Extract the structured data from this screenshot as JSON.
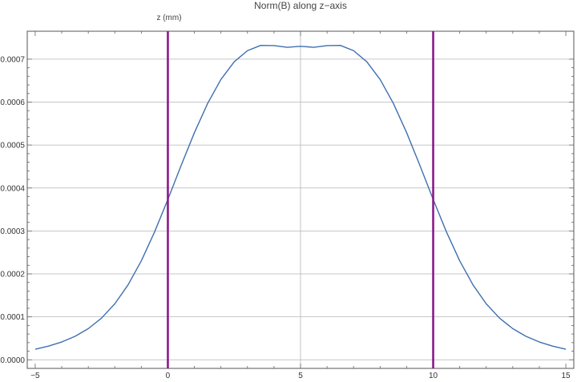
{
  "chart_data": {
    "type": "line",
    "title": "Norm(B) along z−axis",
    "xlabel": "z (mm)",
    "ylabel": "",
    "xlim": [
      -5.3,
      15.3
    ],
    "ylim": [
      -2e-05,
      0.000765
    ],
    "grid": true,
    "legend": "none",
    "x_ticks": [
      {
        "value": -5,
        "label": "−5"
      },
      {
        "value": 0,
        "label": "0"
      },
      {
        "value": 5,
        "label": "5"
      },
      {
        "value": 10,
        "label": "10"
      },
      {
        "value": 15,
        "label": "15"
      }
    ],
    "y_ticks": [
      {
        "value": 0.0,
        "label": "0.0000"
      },
      {
        "value": 0.0001,
        "label": "0.0001"
      },
      {
        "value": 0.0002,
        "label": "0.0002"
      },
      {
        "value": 0.0003,
        "label": "0.0003"
      },
      {
        "value": 0.0004,
        "label": "0.0004"
      },
      {
        "value": 0.0005,
        "label": "0.0005"
      },
      {
        "value": 0.0006,
        "label": "0.0006"
      },
      {
        "value": 0.0007,
        "label": "0.0007"
      }
    ],
    "x_grid": [
      0,
      5,
      10
    ],
    "series": [
      {
        "color": "#3f6fb0",
        "x": [
          -5,
          -4.5,
          -4,
          -3.5,
          -3,
          -2.5,
          -2,
          -1.5,
          -1,
          -0.5,
          0,
          0.5,
          1,
          1.5,
          2,
          2.5,
          3,
          3.5,
          4,
          4.5,
          5,
          5.5,
          6,
          6.5,
          7,
          7.5,
          8,
          8.5,
          9,
          9.5,
          10,
          10.5,
          11,
          11.5,
          12,
          12.5,
          13,
          13.5,
          14,
          14.5,
          15
        ],
        "y": [
          2.47e-05,
          3.18e-05,
          4.15e-05,
          5.46e-05,
          7.25e-05,
          9.71e-05,
          0.0001304,
          0.0001745,
          0.0002305,
          0.0002978,
          0.0003734,
          0.0004524,
          0.0005288,
          0.000597,
          0.0006528,
          0.0006938,
          0.0007198,
          0.000732,
          0.0007316,
          0.0007276,
          0.00073,
          0.0007276,
          0.0007316,
          0.000732,
          0.0007198,
          0.0006938,
          0.0006528,
          0.000597,
          0.0005288,
          0.0004524,
          0.0003734,
          0.0002978,
          0.0002305,
          0.0001745,
          0.0001304,
          9.71e-05,
          7.25e-05,
          5.46e-05,
          4.15e-05,
          3.18e-05,
          2.47e-05
        ]
      }
    ],
    "vertical_lines": [
      {
        "x": 0,
        "color": "#8b1a8b"
      },
      {
        "x": 10,
        "color": "#8b1a8b"
      }
    ],
    "colors": {
      "frame": "#555555",
      "grid": "#b5b5b5",
      "curve": "#3f6fb0",
      "marker_lines": "#8b1a8b"
    }
  }
}
